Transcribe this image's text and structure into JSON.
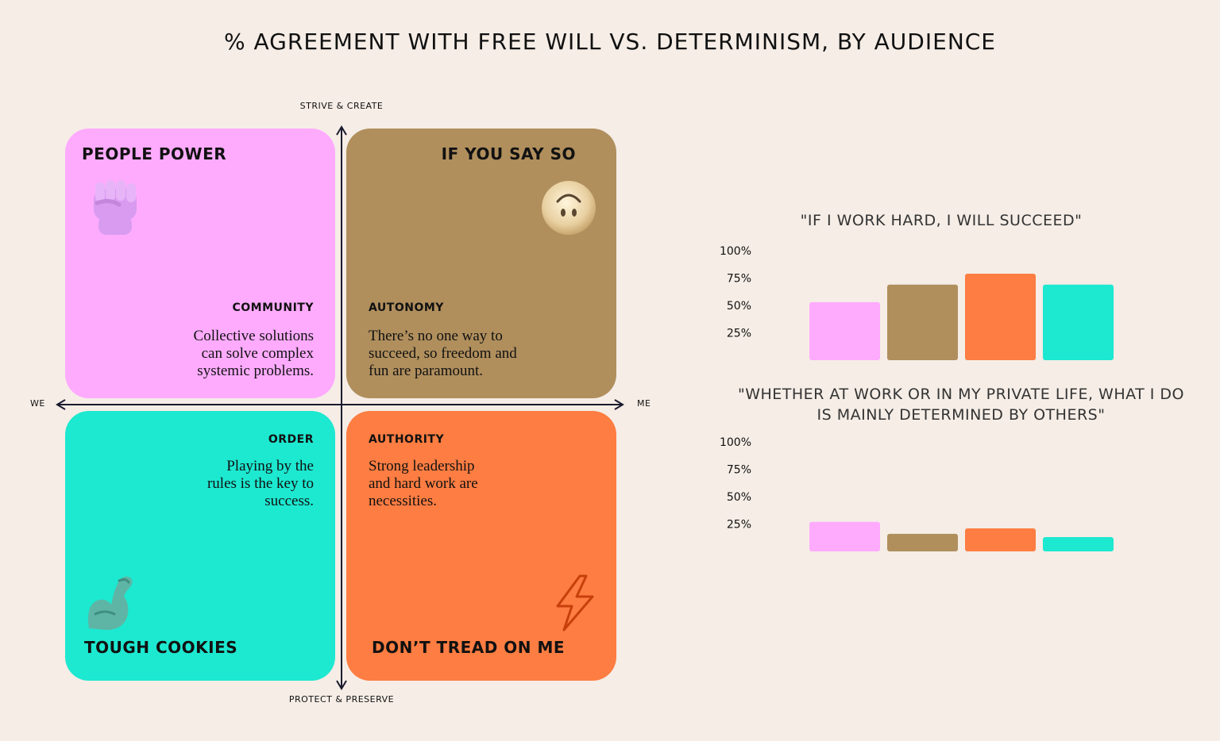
{
  "title": "% AGREEMENT WITH FREE WILL VS. DETERMINISM, BY AUDIENCE",
  "axes": {
    "top": "STRIVE & CREATE",
    "bottom": "PROTECT & PRESERVE",
    "left": "WE",
    "right": "ME"
  },
  "quadrants": {
    "people_power": {
      "title": "PEOPLE POWER",
      "subtitle": "COMMUNITY",
      "desc_lines": [
        "Collective solutions",
        "can solve complex",
        "systemic problems."
      ],
      "icon": "raised-fist-icon",
      "color": "#feabfe"
    },
    "if_you_say_so": {
      "title": "IF YOU SAY SO",
      "subtitle": "AUTONOMY",
      "desc_lines": [
        "There’s no one way to",
        "succeed, so freedom and",
        "fun are paramount."
      ],
      "icon": "upside-down-face-icon",
      "color": "#b08f5d"
    },
    "tough_cookies": {
      "title": "TOUGH COOKIES",
      "subtitle": "ORDER",
      "desc_lines": [
        "Playing by the",
        "rules is the key to",
        "success."
      ],
      "icon": "flexed-bicep-icon",
      "color": "#1de8d0"
    },
    "dont_tread": {
      "title": "DON’T TREAD ON ME",
      "subtitle": "AUTHORITY",
      "desc_lines": [
        "Strong leadership",
        "and hard work are",
        "necessities."
      ],
      "icon": "lightning-bolt-icon",
      "color": "#fe7d42"
    }
  },
  "chart_data": [
    {
      "type": "bar",
      "title": "\"IF I WORK HARD, I WILL SUCCEED\"",
      "categories": [
        "PEOPLE POWER",
        "IF YOU SAY SO",
        "DON’T TREAD ON ME",
        "TOUGH COOKIES"
      ],
      "colors": [
        "#feabfe",
        "#b08f5d",
        "#fe7d42",
        "#1de8d0"
      ],
      "values": [
        53,
        69,
        79,
        69
      ],
      "yticks": [
        "100%",
        "75%",
        "50%",
        "25%"
      ],
      "ylim": [
        0,
        100
      ],
      "grid": false
    },
    {
      "type": "bar",
      "title": "\"WHETHER AT WORK OR IN MY PRIVATE LIFE, WHAT I DO IS MAINLY DETERMINED BY OTHERS\"",
      "categories": [
        "PEOPLE POWER",
        "IF YOU SAY SO",
        "DON’T TREAD ON ME",
        "TOUGH COOKIES"
      ],
      "colors": [
        "#feabfe",
        "#b08f5d",
        "#fe7d42",
        "#1de8d0"
      ],
      "values": [
        27,
        16,
        21,
        13
      ],
      "yticks": [
        "100%",
        "75%",
        "50%",
        "25%"
      ],
      "ylim": [
        0,
        100
      ],
      "grid": false
    }
  ]
}
